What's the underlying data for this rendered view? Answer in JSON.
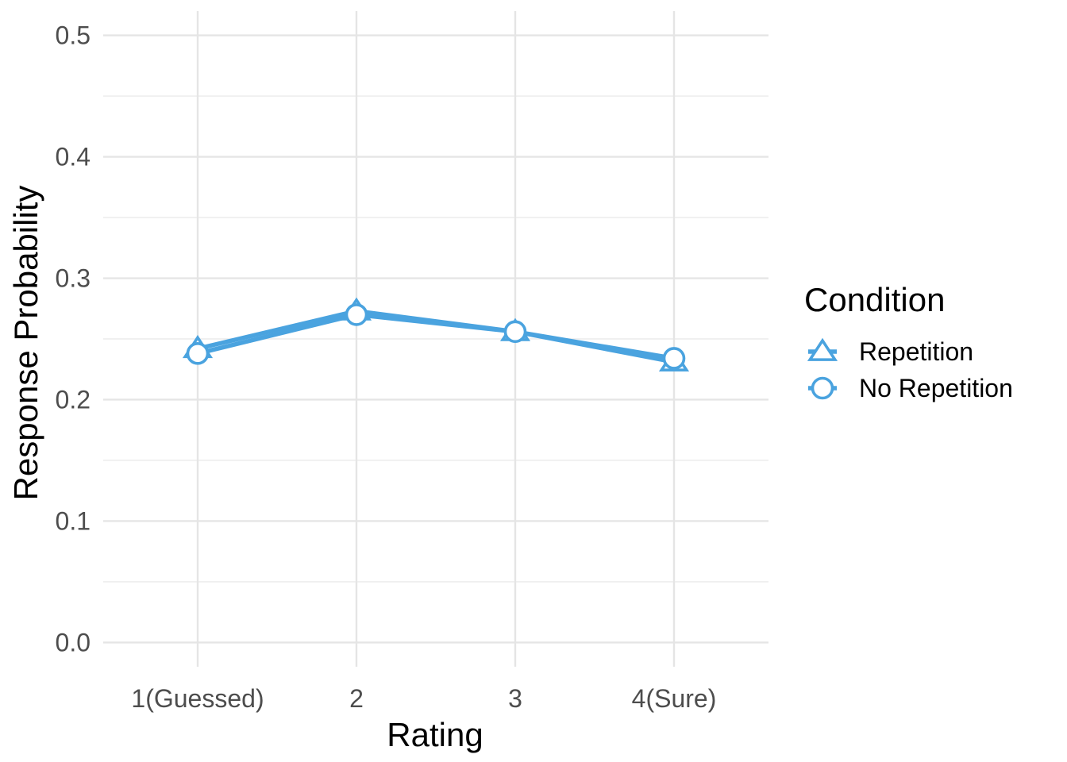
{
  "chart_data": {
    "type": "line",
    "xlabel": "Rating",
    "ylabel": "Response Probability",
    "categories": [
      "1(Guessed)",
      "2",
      "3",
      "4(Sure)"
    ],
    "ylim": [
      -0.02,
      0.52
    ],
    "yticks": [
      0.0,
      0.1,
      0.2,
      0.3,
      0.4,
      0.5
    ],
    "ytick_labels": [
      "0.0",
      "0.1",
      "0.2",
      "0.3",
      "0.4",
      "0.5"
    ],
    "grid": true,
    "legend": {
      "title": "Condition",
      "placement": "right"
    },
    "series": [
      {
        "name": "Repetition",
        "marker": "triangle",
        "values": [
          0.242,
          0.273,
          0.256,
          0.231
        ]
      },
      {
        "name": "No Repetition",
        "marker": "circle",
        "values": [
          0.238,
          0.27,
          0.256,
          0.234
        ]
      }
    ],
    "color": "#4aa3df"
  }
}
